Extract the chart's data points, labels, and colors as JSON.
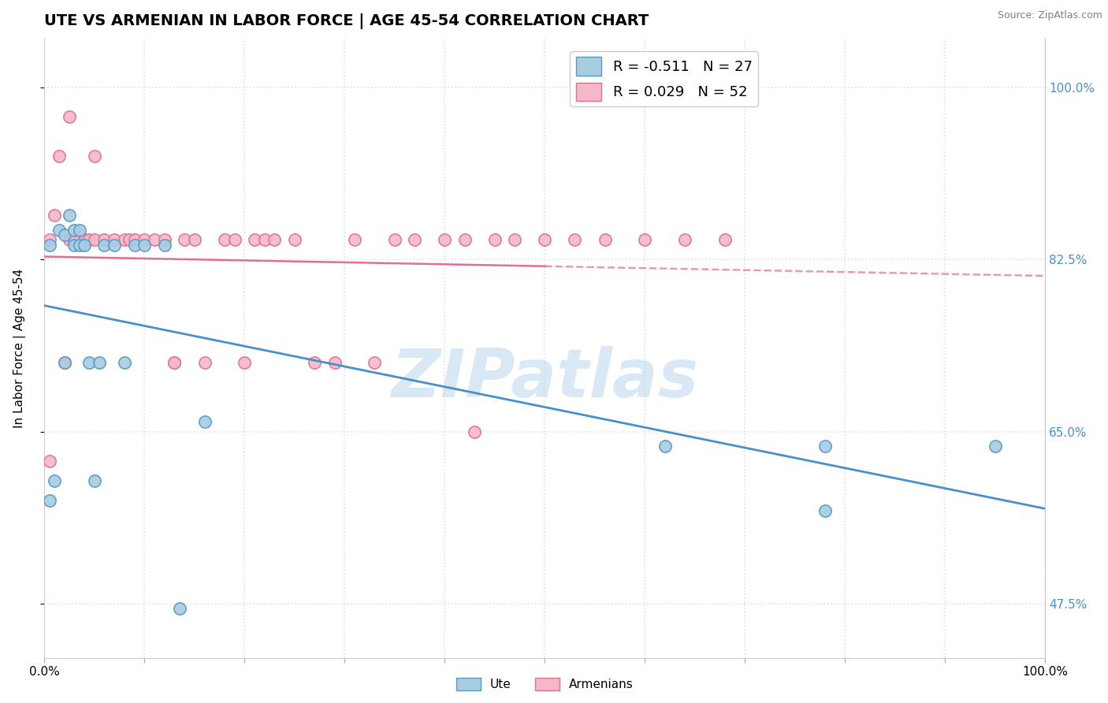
{
  "title": "UTE VS ARMENIAN IN LABOR FORCE | AGE 45-54 CORRELATION CHART",
  "source_text": "Source: ZipAtlas.com",
  "ylabel": "In Labor Force | Age 45-54",
  "xlim": [
    0.0,
    1.0
  ],
  "ylim": [
    0.42,
    1.05
  ],
  "ytick_positions": [
    0.475,
    0.65,
    0.825,
    1.0
  ],
  "ytick_labels_right": [
    "47.5%",
    "65.0%",
    "82.5%",
    "100.0%"
  ],
  "xtick_positions": [
    0.0,
    0.1,
    0.2,
    0.3,
    0.4,
    0.5,
    0.6,
    0.7,
    0.8,
    0.9,
    1.0
  ],
  "xtick_labels_bottom": [
    "0.0%",
    "",
    "",
    "",
    "",
    "",
    "",
    "",
    "",
    "",
    "100.0%"
  ],
  "ute_color": "#a8cce0",
  "armenian_color": "#f5b8c8",
  "ute_edge_color": "#5599c8",
  "armenian_edge_color": "#e07090",
  "trend_ute_color": "#4a90c8",
  "trend_armenian_color": "#e07090",
  "legend_ute_label": "R = -0.511   N = 27",
  "legend_armenian_label": "R = 0.029   N = 52",
  "watermark": "ZIPatlas",
  "background_color": "#ffffff",
  "grid_color": "#e0e0e0",
  "title_fontsize": 14,
  "axis_fontsize": 11,
  "tick_fontsize": 11,
  "marker_size": 11,
  "ute_x": [
    0.005,
    0.015,
    0.02,
    0.025,
    0.03,
    0.03,
    0.035,
    0.035,
    0.04,
    0.045,
    0.05,
    0.055,
    0.06,
    0.07,
    0.08,
    0.09,
    0.1,
    0.12,
    0.135,
    0.16,
    0.005,
    0.01,
    0.02,
    0.62,
    0.78,
    0.95,
    0.78
  ],
  "ute_y": [
    0.84,
    0.855,
    0.85,
    0.87,
    0.84,
    0.855,
    0.84,
    0.855,
    0.84,
    0.72,
    0.6,
    0.72,
    0.84,
    0.84,
    0.72,
    0.84,
    0.84,
    0.84,
    0.47,
    0.66,
    0.58,
    0.6,
    0.72,
    0.635,
    0.635,
    0.635,
    0.57
  ],
  "armenian_x": [
    0.005,
    0.01,
    0.015,
    0.02,
    0.025,
    0.025,
    0.03,
    0.03,
    0.03,
    0.04,
    0.04,
    0.045,
    0.05,
    0.05,
    0.06,
    0.07,
    0.08,
    0.085,
    0.09,
    0.1,
    0.11,
    0.12,
    0.13,
    0.14,
    0.15,
    0.16,
    0.18,
    0.19,
    0.2,
    0.21,
    0.22,
    0.23,
    0.25,
    0.27,
    0.29,
    0.31,
    0.33,
    0.35,
    0.37,
    0.4,
    0.42,
    0.45,
    0.47,
    0.5,
    0.53,
    0.56,
    0.6,
    0.64,
    0.68,
    0.005,
    0.13,
    0.43
  ],
  "armenian_y": [
    0.845,
    0.87,
    0.93,
    0.72,
    0.845,
    0.97,
    0.845,
    0.845,
    0.845,
    0.845,
    0.845,
    0.845,
    0.93,
    0.845,
    0.845,
    0.845,
    0.845,
    0.845,
    0.845,
    0.845,
    0.845,
    0.845,
    0.72,
    0.845,
    0.845,
    0.72,
    0.845,
    0.845,
    0.72,
    0.845,
    0.845,
    0.845,
    0.845,
    0.72,
    0.72,
    0.845,
    0.72,
    0.845,
    0.845,
    0.845,
    0.845,
    0.845,
    0.845,
    0.845,
    0.845,
    0.845,
    0.845,
    0.845,
    0.845,
    0.62,
    0.72,
    0.65
  ]
}
